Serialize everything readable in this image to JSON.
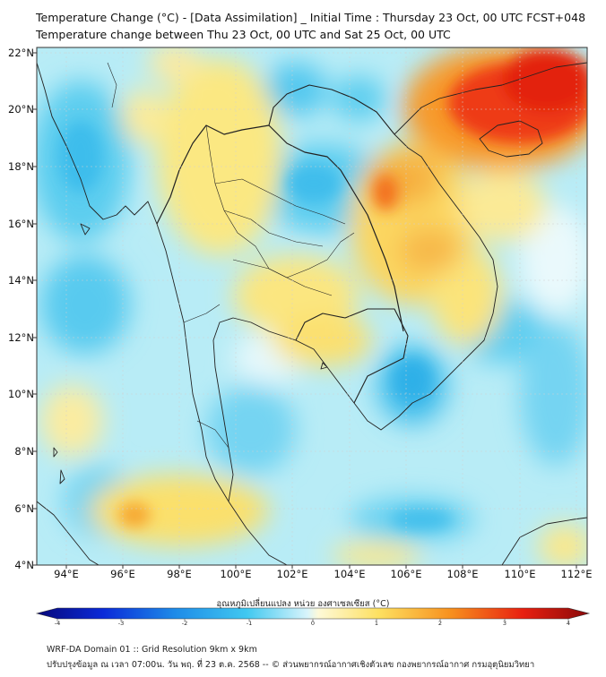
{
  "header": {
    "title_line1": "Temperature Change (°C) - [Data Assimilation] _ Initial Time : Thursday 23 Oct, 00 UTC FCST+048",
    "title_line2": "Temperature change between Thu 23 Oct, 00 UTC and Sat 25 Oct, 00 UTC"
  },
  "map": {
    "lat_labels": [
      "22°N",
      "20°N",
      "18°N",
      "16°N",
      "14°N",
      "12°N",
      "10°N",
      "8°N",
      "6°N",
      "4°N"
    ],
    "lon_labels": [
      "94°E",
      "96°E",
      "98°E",
      "100°E",
      "102°E",
      "104°E",
      "106°E",
      "108°E",
      "110°E",
      "112°E"
    ],
    "lat_range": [
      4,
      22.2
    ],
    "lon_range": [
      93,
      112.4
    ]
  },
  "colorbar": {
    "title": "อุณหภูมิเปลี่ยนแปลง หน่วย องศาเซลเซียส (°C)",
    "tick_labels": [
      "-4",
      "-3",
      "-2",
      "-1",
      "0",
      "1",
      "2",
      "3",
      "4"
    ],
    "range": [
      -4,
      4
    ],
    "colors": [
      "#08087a",
      "#0a2ad8",
      "#1e8be8",
      "#40c8f0",
      "#c8f0fa",
      "#fdf7c8",
      "#fde060",
      "#f7901e",
      "#e82010",
      "#8a0a0a"
    ]
  },
  "footer": {
    "line1": "WRF-DA Domain 01 :: Grid Resolution 9km x 9km",
    "line2": "ปรับปรุงข้อมูล ณ เวลา 07:00น. วัน พฤ. ที่ 23 ต.ค. 2568 -- © ส่วนพยากรณ์อากาศเชิงตัวเลข กองพยากรณ์อากาศ กรมอุตุนิยมวิทยา"
  }
}
